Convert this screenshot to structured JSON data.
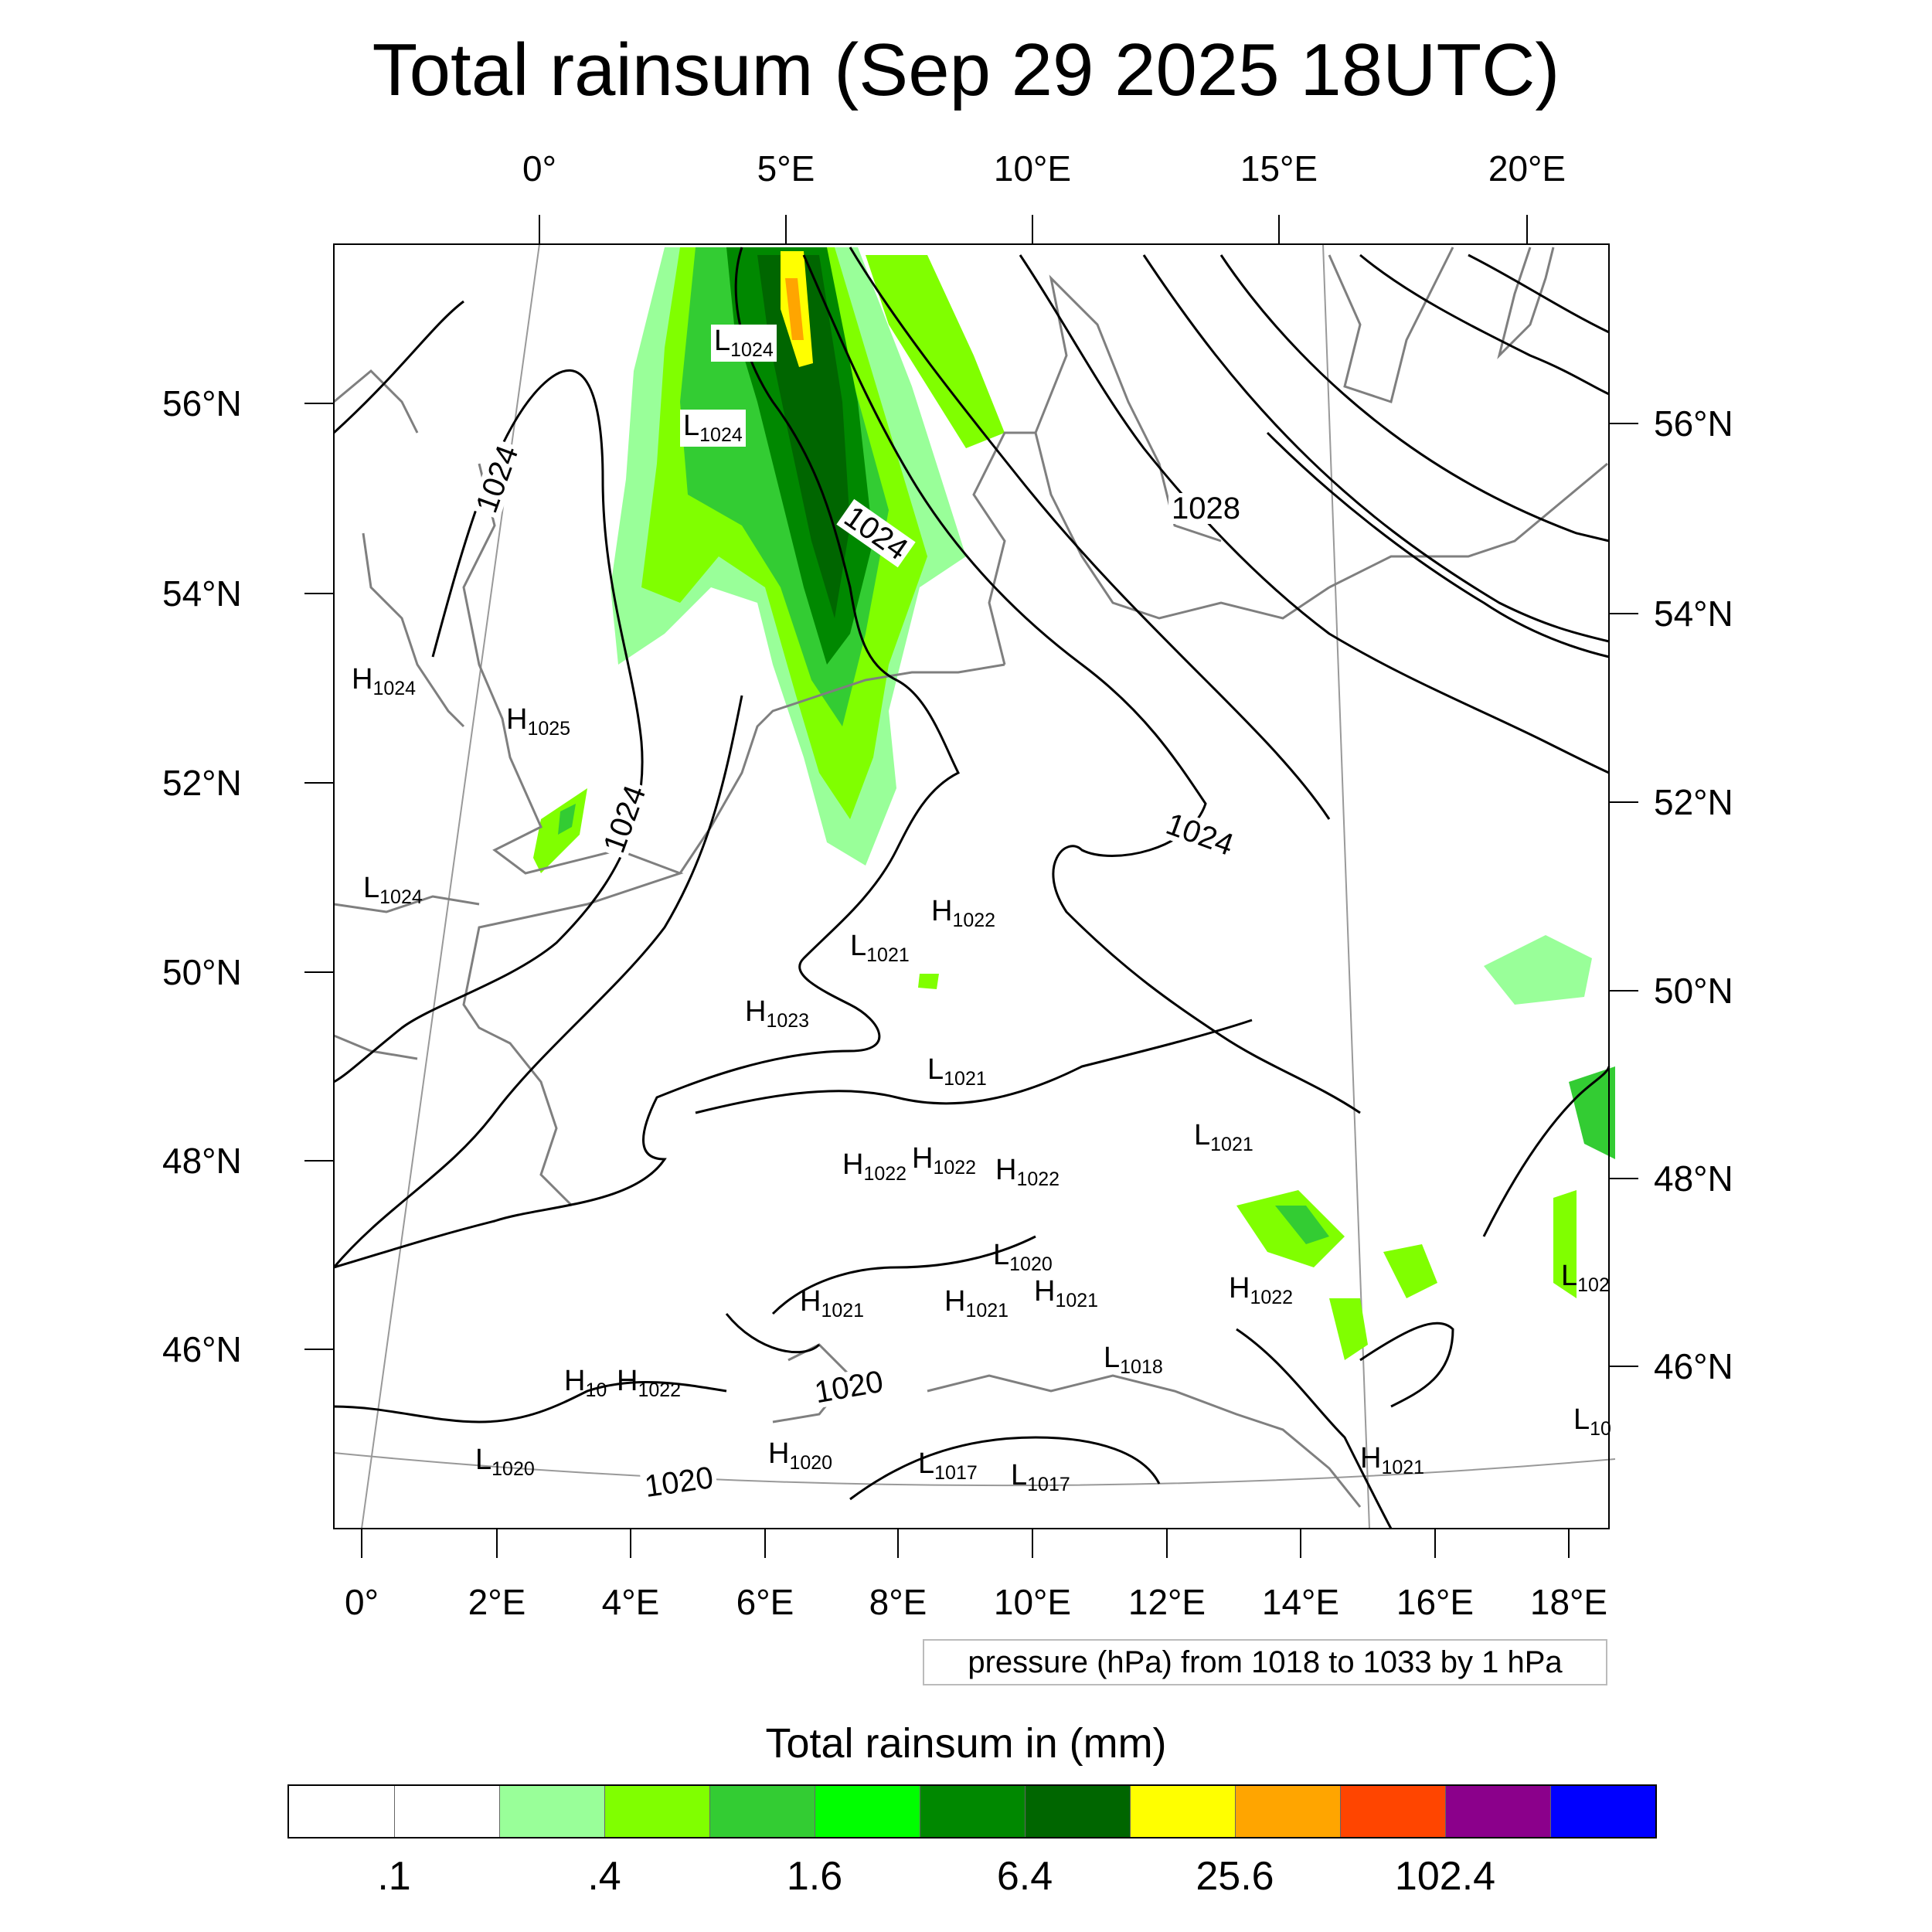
{
  "title": "Total rainsum (Sep 29 2025 18UTC)",
  "top_axis_labels": [
    "0°",
    "5°E",
    "10°E",
    "15°E",
    "20°E"
  ],
  "bottom_axis_labels": [
    "0°",
    "2°E",
    "4°E",
    "6°E",
    "8°E",
    "10°E",
    "12°E",
    "14°E",
    "16°E",
    "18°E"
  ],
  "left_axis_labels": [
    "56°N",
    "54°N",
    "52°N",
    "50°N",
    "48°N",
    "46°N"
  ],
  "right_axis_labels": [
    "56°N",
    "54°N",
    "52°N",
    "50°N",
    "48°N",
    "46°N"
  ],
  "contour_labels": [
    "1024",
    "1024",
    "1024",
    "1024",
    "1028",
    "1020",
    "1020"
  ],
  "pressure_systems": [
    {
      "letter": "L",
      "value": "1024"
    },
    {
      "letter": "L",
      "value": "1024"
    },
    {
      "letter": "H",
      "value": "1024"
    },
    {
      "letter": "H",
      "value": "1025"
    },
    {
      "letter": "L",
      "value": "1024"
    },
    {
      "letter": "H",
      "value": "1022"
    },
    {
      "letter": "L",
      "value": "1021"
    },
    {
      "letter": "H",
      "value": "1023"
    },
    {
      "letter": "L",
      "value": "1021"
    },
    {
      "letter": "L",
      "value": "1021"
    },
    {
      "letter": "H",
      "value": "1022"
    },
    {
      "letter": "H",
      "value": "1022"
    },
    {
      "letter": "H",
      "value": "1022"
    },
    {
      "letter": "L",
      "value": "1020"
    },
    {
      "letter": "H",
      "value": "1021"
    },
    {
      "letter": "H",
      "value": "1021"
    },
    {
      "letter": "H",
      "value": "1021"
    },
    {
      "letter": "H",
      "value": "1022"
    },
    {
      "letter": "L",
      "value": "102"
    },
    {
      "letter": "H",
      "value": "10"
    },
    {
      "letter": "H",
      "value": "1022"
    },
    {
      "letter": "L",
      "value": "1018"
    },
    {
      "letter": "L",
      "value": "1020"
    },
    {
      "letter": "H",
      "value": "1020"
    },
    {
      "letter": "L",
      "value": "1017"
    },
    {
      "letter": "L",
      "value": "1017"
    },
    {
      "letter": "H",
      "value": "1021"
    },
    {
      "letter": "L",
      "value": "10"
    }
  ],
  "legend_note": "pressure (hPa) from 1018 to 1033 by 1 hPa",
  "colorbar": {
    "title": "Total rainsum in (mm)",
    "colors": [
      "#ffffff",
      "#ffffff",
      "#99ff99",
      "#80ff00",
      "#33cc33",
      "#00ff00",
      "#008800",
      "#006600",
      "#ffff00",
      "#ffa500",
      "#ff4500",
      "#8b008b",
      "#0000ff"
    ],
    "tick_labels": [
      ".1",
      ".4",
      "1.6",
      "6.4",
      "25.6",
      "102.4"
    ]
  }
}
